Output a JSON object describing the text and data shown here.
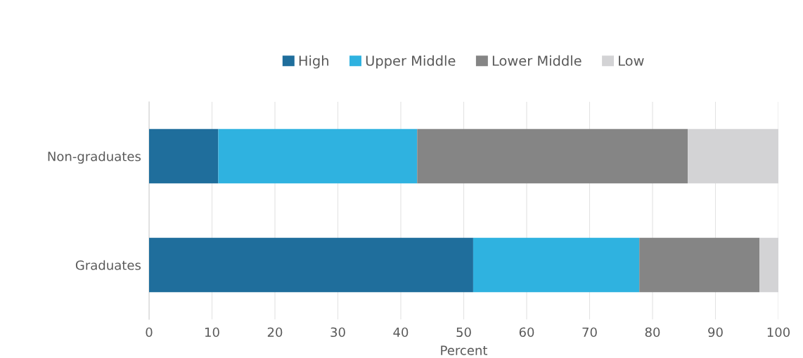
{
  "chart_data": {
    "type": "bar",
    "orientation": "horizontal",
    "stacked": true,
    "categories": [
      "Non-graduates",
      "Graduates"
    ],
    "series": [
      {
        "name": "High",
        "color": "#1f6e9c",
        "values": [
          11.0,
          51.5
        ]
      },
      {
        "name": "Upper Middle",
        "color": "#2fb2e0",
        "values": [
          31.6,
          26.4
        ]
      },
      {
        "name": "Lower Middle",
        "color": "#858585",
        "values": [
          43.0,
          19.1
        ]
      },
      {
        "name": "Low",
        "color": "#d3d3d5",
        "values": [
          14.4,
          3.0
        ]
      }
    ],
    "xlabel": "Percent",
    "xlim": [
      0,
      100
    ],
    "xticks": [
      0,
      10,
      20,
      30,
      40,
      50,
      60,
      70,
      80,
      90,
      100
    ],
    "grid": "x",
    "legend": "top"
  }
}
